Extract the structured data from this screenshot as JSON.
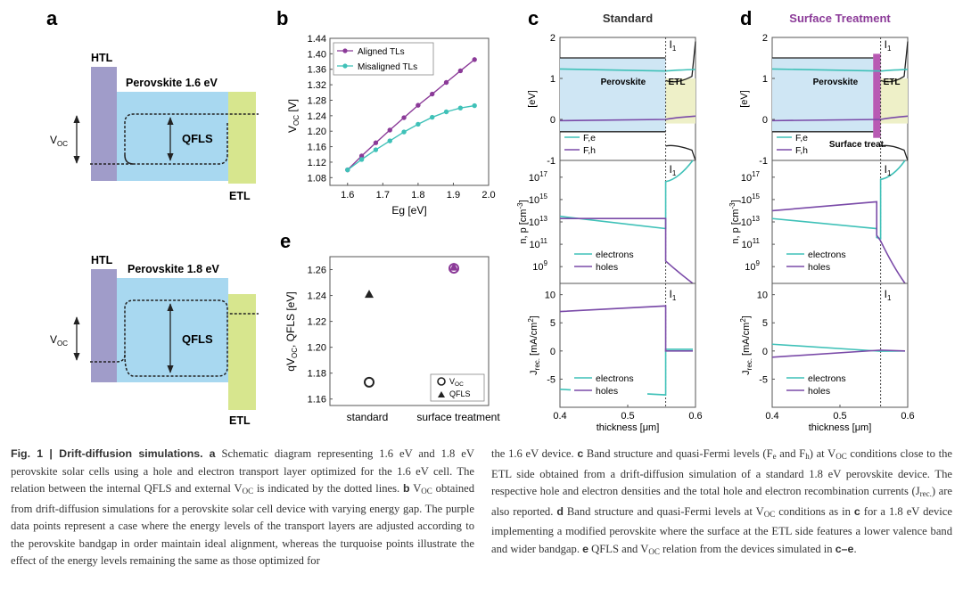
{
  "panel_a": {
    "label": "a",
    "top": {
      "htl": "HTL",
      "title": "Perovskite 1.6 eV",
      "qfls": "QFLS",
      "voc": "V",
      "voc_sub": "OC",
      "etl": "ETL"
    },
    "bottom": {
      "htl": "HTL",
      "title": "Perovskite 1.8 eV",
      "qfls": "QFLS",
      "voc": "V",
      "voc_sub": "OC",
      "etl": "ETL"
    },
    "colors": {
      "htl": "#a09cc9",
      "perovskite": "#a8d8f0",
      "etl": "#d7e68e"
    }
  },
  "panel_b": {
    "label": "b",
    "ylabel_main": "V",
    "ylabel_sub": "OC",
    "ylabel_unit": " [V]",
    "chart_data": {
      "type": "line",
      "xlabel": "Eg [eV]",
      "xlim": [
        1.55,
        2.0
      ],
      "ylim": [
        1.06,
        1.44
      ],
      "xticks": [
        "1.6",
        "1.7",
        "1.8",
        "1.9",
        "2.0"
      ],
      "yticks": [
        "1.08",
        "1.12",
        "1.16",
        "1.20",
        "1.24",
        "1.28",
        "1.32",
        "1.36",
        "1.40",
        "1.44"
      ],
      "legend_position": "top-left",
      "series": [
        {
          "name": "Aligned TLs",
          "color": "#8b3a98",
          "x": [
            1.6,
            1.64,
            1.68,
            1.72,
            1.76,
            1.8,
            1.84,
            1.88,
            1.92,
            1.96
          ],
          "y": [
            1.1,
            1.136,
            1.17,
            1.203,
            1.235,
            1.267,
            1.296,
            1.326,
            1.356,
            1.385
          ]
        },
        {
          "name": "Misaligned TLs",
          "color": "#3fc1b8",
          "x": [
            1.6,
            1.64,
            1.68,
            1.72,
            1.76,
            1.8,
            1.84,
            1.88,
            1.92,
            1.96
          ],
          "y": [
            1.1,
            1.127,
            1.152,
            1.175,
            1.198,
            1.218,
            1.236,
            1.25,
            1.26,
            1.266
          ]
        }
      ]
    }
  },
  "panel_e": {
    "label": "e",
    "ylabel_pre": "qV",
    "ylabel_sub": "OC",
    "ylabel_post": ", QFLS [eV]",
    "legend_voc": "V",
    "legend_voc_sub": "OC",
    "legend_qfls": "QFLS",
    "chart_data": {
      "type": "scatter",
      "categories": [
        "standard",
        "surface treatment"
      ],
      "ylim": [
        1.155,
        1.27
      ],
      "yticks": [
        "1.16",
        "1.18",
        "1.20",
        "1.22",
        "1.24",
        "1.26"
      ],
      "series": [
        {
          "name": "VOC",
          "values": [
            1.173,
            1.261
          ]
        },
        {
          "name": "QFLS",
          "values": [
            1.241,
            1.262
          ]
        }
      ],
      "legend_position": "bottom-right"
    }
  },
  "panel_c": {
    "label": "c",
    "title": "Standard",
    "band": {
      "ylabel": "[eV]",
      "yticks": [
        "2",
        "1",
        "0",
        "-1"
      ],
      "ylim": [
        -1,
        2
      ],
      "region_left": "Perovskite",
      "region_right": "ETL",
      "interface": "I",
      "legend": [
        "F,e",
        "F,h"
      ],
      "chart_data": {
        "type": "line",
        "xlim": [
          0.4,
          0.6
        ],
        "interface_x": 0.56,
        "conduction_band": {
          "x": [
            0.4,
            0.56
          ],
          "y": [
            1.5,
            1.5
          ]
        },
        "valence_band": {
          "x": [
            0.4,
            0.56
          ],
          "y": [
            -0.3,
            -0.3
          ]
        },
        "fe": {
          "x": [
            0.4,
            0.56
          ],
          "y": [
            1.23,
            1.18
          ]
        },
        "fh": {
          "x": [
            0.4,
            0.56
          ],
          "y": [
            -0.03,
            0.0
          ]
        }
      }
    },
    "density": {
      "ylabel": "n, p [cm",
      "ylabel_sup": "-3",
      "ylabel_end": "]",
      "yticks": [
        "10",
        "10",
        "10",
        "10",
        "10"
      ],
      "ytick_exp": [
        "17",
        "15",
        "13",
        "11",
        "9"
      ],
      "interface": "I",
      "legend": [
        "electrons",
        "holes"
      ],
      "chart_data": {
        "type": "line",
        "yscale": "log",
        "electrons": {
          "x": [
            0.4,
            0.56
          ],
          "y": [
            30000000000000.0,
            3000000000000.0
          ]
        },
        "holes": {
          "x": [
            0.4,
            0.56
          ],
          "y": [
            20000000000000.0,
            20000000000000.0
          ]
        }
      }
    },
    "recomb": {
      "ylabel": "J",
      "ylabel_sub": "rec.",
      "ylabel_end": " [mA/cm",
      "ylabel_sup": "2",
      "ylabel_close": "]",
      "yticks": [
        "10",
        "5",
        "0",
        "-5"
      ],
      "xticks": [
        "0.4",
        "0.5",
        "0.6"
      ],
      "xlabel": "thickness [μm]",
      "interface": "I",
      "legend": [
        "electrons",
        "holes"
      ],
      "chart_data": {
        "type": "line",
        "xlim": [
          0.4,
          0.6
        ],
        "ylim": [
          -10,
          12
        ],
        "electrons": {
          "x": [
            0.4,
            0.56
          ],
          "y": [
            -6.8,
            -7.8
          ]
        },
        "holes": {
          "x": [
            0.4,
            0.56
          ],
          "y": [
            7.0,
            8.0
          ]
        }
      }
    }
  },
  "panel_d": {
    "label": "d",
    "title": "Surface Treatment",
    "title_color": "#8b3a98",
    "band": {
      "ylabel": "[eV]",
      "yticks": [
        "2",
        "1",
        "0",
        "-1"
      ],
      "region_left": "Perovskite",
      "region_right": "ETL",
      "interface": "I",
      "legend": [
        "F,e",
        "F,h"
      ],
      "note": "Surface treat."
    },
    "density": {
      "ylabel": "n, p [cm",
      "ylabel_sup": "-3",
      "ylabel_end": "]",
      "yticks": [
        "10",
        "10",
        "10",
        "10",
        "10"
      ],
      "ytick_exp": [
        "17",
        "15",
        "13",
        "11",
        "9"
      ],
      "interface": "I",
      "legend": [
        "electrons",
        "holes"
      ]
    },
    "recomb": {
      "ylabel": "J",
      "ylabel_sub": "rec.",
      "ylabel_end": " [mA/cm",
      "ylabel_sup": "2",
      "ylabel_close": "]",
      "yticks": [
        "10",
        "5",
        "0",
        "-5"
      ],
      "xticks": [
        "0.4",
        "0.5",
        "0.6"
      ],
      "xlabel": "thickness [μm]",
      "interface": "I",
      "legend": [
        "electrons",
        "holes"
      ]
    }
  },
  "caption": {
    "fig": "Fig. 1 | Drift-diffusion simulations.",
    "a_label": "a",
    "a_text1": " Schematic diagram representing 1.6 eV and 1.8 eV perovskite solar cells using a hole and electron transport layer optimized for the 1.6 eV cell. The relation between the internal QFLS and external V",
    "a_text2": " is indicated by the dotted lines.",
    "b_label": "b",
    "b_text1": " V",
    "b_text2": " obtained from drift-diffusion simulations for a perovskite solar cell device with varying energy gap. The purple data points represent a case where the energy levels of the transport layers are adjusted according to the perovskite bandgap in order maintain ideal alignment, whereas the turquoise points illustrate the effect of the energy levels remaining the same as those optimized for",
    "r_text1": "the 1.6 eV device. ",
    "c_label": "c",
    "c_text1": " Band structure and quasi-Fermi levels (F",
    "c_text2": " and F",
    "c_text3": ") at V",
    "c_text4": " conditions close to the ETL side obtained from a drift-diffusion simulation of a standard 1.8 eV perovskite device. The respective hole and electron densities and the total hole and electron recombination currents (J",
    "c_text5": ") are also reported. ",
    "d_label": "d",
    "d_text1": " Band structure and quasi-Fermi levels at V",
    "d_text2": " conditions as in ",
    "d_text3": " for a 1.8 eV device implementing a modified perovskite where the surface at the ETL side features a lower valence band and wider bandgap. ",
    "e_label": "e",
    "e_text1": " QFLS and V",
    "e_text2": " relation from the devices simulated in ",
    "e_text3": "c–e",
    "e_text4": ".",
    "sub_oc": "OC",
    "sub_e": "e",
    "sub_h": "h",
    "sub_rec": "rec.",
    "c_ref": "c"
  }
}
